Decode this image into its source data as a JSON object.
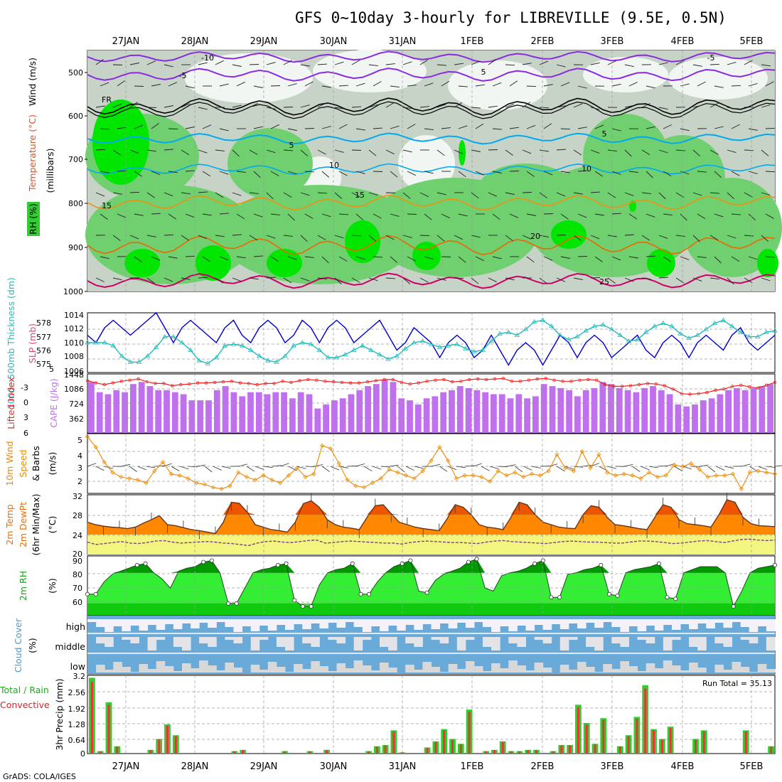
{
  "title": "GFS 0~10day 3-hourly for LIBREVILLE (9.5E, 0.5N)",
  "credit": "GrADS: COLA/IGES",
  "date_labels": [
    "27JAN",
    "28JAN",
    "29JAN",
    "30JAN",
    "31JAN",
    "1FEB",
    "2FEB",
    "3FEB",
    "4FEB",
    "5FEB"
  ],
  "colors": {
    "rh_light": "#c8d3c8",
    "rh_mid": "#70d070",
    "rh_strong": "#00e600",
    "temp_purple": "#8a2be2",
    "temp_black": "#000000",
    "temp_cyan": "#00aaee",
    "temp_orange": "#f09010",
    "temp_orange_dark": "#ee6600",
    "temp_magenta": "#cc0066",
    "slp": "#0000cc",
    "thickness": "#22bbbb",
    "cape": "#c070ee",
    "lifted": "#ee2222",
    "wind10m": "#ee8800",
    "temp2m": "#ff8800",
    "temp2m_max": "#ee5500",
    "dewpt": "#774488",
    "rh2m_dark": "#009900",
    "rh2m_mid": "#00cc00",
    "rh2m_light": "#33ee33",
    "cloud": "#6aaad8",
    "precip_total": "#33cc33",
    "precip_conv": "#ee3333"
  },
  "panels": {
    "upper": {
      "label_wind": "Wind (m/s)",
      "label_temp": "Temperature (°C)",
      "label_rh": "RH (%)",
      "label_axis": "(millibars)",
      "ticks": [
        "500",
        "600",
        "700",
        "800",
        "900",
        "1000"
      ],
      "contour_labels": [
        "-10",
        "-5",
        "5",
        "-5",
        "FR",
        "5",
        "5",
        "10",
        "10",
        "15",
        "15",
        "20",
        "25"
      ]
    },
    "slp": {
      "label_slp": "SLP (mb)",
      "label_thk": "1000~500mb Thickness (dm)",
      "ticks_left": [
        "578",
        "577",
        "576",
        "575"
      ],
      "ticks_right": [
        "1014",
        "1012",
        "1010",
        "1008"
      ],
      "overlap": [
        "5",
        "1006"
      ]
    },
    "cape": {
      "label_cape": "CAPE (J/kg)",
      "label_li": "Lifted Index",
      "ticks_left": [
        "-3",
        "0",
        "3",
        "6"
      ],
      "ticks_right": [
        "1448",
        "1086",
        "724",
        "362"
      ]
    },
    "wind10m": {
      "label1": "10m Wind",
      "label2": "Speed",
      "label3": "& Barbs",
      "label4": "(m/s)",
      "ticks": [
        "5",
        "4",
        "3",
        "2"
      ]
    },
    "temp2m": {
      "label1": "2m Temp",
      "label2": "2m DewPt",
      "label3": "(6hr Min/Max)",
      "label4": "(°C)",
      "ticks": [
        "32",
        "28",
        "24",
        "20"
      ]
    },
    "rh2m": {
      "label1": "2m RH",
      "label2": "(%)",
      "ticks": [
        "90",
        "80",
        "70",
        "60"
      ]
    },
    "cloud": {
      "label1": "Cloud Cover",
      "label2": "(%)",
      "ticks": [
        "high",
        "middle",
        "low"
      ]
    },
    "precip": {
      "label1": "Total / Rain",
      "label2": "Convective",
      "label3": "3hr Precip (mm)",
      "ticks": [
        "3.2",
        "2.56",
        "1.92",
        "1.28",
        "0.64",
        "0"
      ],
      "run_total": "Run Total = 35.13"
    }
  },
  "chart_data": [
    {
      "type": "line",
      "title": "SLP (mb)",
      "x": "3-hourly steps from 26 JAN 12Z to 5 FEB 12Z",
      "ylim": [
        1006,
        1014
      ],
      "series": [
        {
          "name": "SLP (mb)",
          "values": [
            1011,
            1010,
            1012,
            1013,
            1012,
            1011,
            1012,
            1013,
            1014,
            1012,
            1010,
            1012,
            1013,
            1012,
            1011,
            1010,
            1012,
            1013,
            1011,
            1010,
            1012,
            1013,
            1012,
            1010,
            1011,
            1013,
            1012,
            1010,
            1012,
            1013,
            1012,
            1010,
            1011,
            1012,
            1013,
            1011,
            1009,
            1010,
            1012,
            1011,
            1010,
            1008,
            1010,
            1011,
            1010,
            1008,
            1009,
            1011,
            1009,
            1007,
            1009,
            1010,
            1009,
            1007,
            1009,
            1011,
            1010,
            1008,
            1010,
            1011,
            1010,
            1008,
            1009,
            1010,
            1011,
            1009,
            1008,
            1010,
            1011,
            1010,
            1008,
            1010,
            1011,
            1010,
            1009,
            1011,
            1012,
            1010,
            1009,
            1010,
            1011
          ]
        }
      ]
    },
    {
      "type": "line",
      "title": "1000~500mb Thickness (dm)",
      "ylim": [
        574.5,
        578.5
      ],
      "series": [
        {
          "name": "1000~500mb Thickness (dm)",
          "values": [
            576.5,
            576.5,
            576.5,
            576.3,
            575.6,
            575.2,
            575.2,
            575.6,
            576.2,
            576.9,
            576.9,
            576.5,
            576.0,
            575.3,
            575.1,
            575.5,
            576.3,
            576.4,
            576.3,
            576.0,
            575.6,
            575.3,
            575.2,
            575.6,
            576.3,
            576.5,
            576.4,
            576.0,
            575.5,
            575.5,
            575.7,
            576.0,
            576.3,
            576.0,
            575.7,
            575.4,
            575.6,
            576.1,
            576.5,
            576.6,
            576.4,
            576.2,
            576.3,
            576.4,
            576.1,
            575.9,
            576.0,
            576.6,
            577.1,
            577.2,
            577.0,
            577.4,
            577.9,
            578.0,
            577.6,
            577.0,
            576.7,
            576.9,
            577.3,
            577.6,
            577.7,
            577.4,
            577.0,
            576.6,
            576.7,
            577.2,
            577.6,
            577.8,
            577.6,
            577.1,
            576.8,
            577.0,
            577.4,
            577.8,
            578.0,
            577.6,
            577.2,
            576.9,
            576.9,
            577.2,
            577.3
          ]
        }
      ]
    },
    {
      "type": "bar",
      "title": "CAPE (J/kg)",
      "ylim": [
        0,
        1448
      ],
      "series": [
        {
          "name": "CAPE (J/kg)",
          "values": [
            1250,
            1000,
            950,
            1050,
            1000,
            1200,
            1250,
            1150,
            1050,
            1050,
            1000,
            950,
            800,
            800,
            800,
            1050,
            1150,
            1000,
            900,
            1000,
            1000,
            950,
            1000,
            1000,
            850,
            1000,
            950,
            600,
            700,
            800,
            850,
            950,
            1050,
            1150,
            1200,
            1300,
            1250,
            850,
            800,
            700,
            850,
            900,
            1000,
            1050,
            1150,
            1100,
            1050,
            1000,
            950,
            950,
            850,
            950,
            850,
            900,
            1200,
            1150,
            1100,
            1050,
            900,
            1050,
            1100,
            1250,
            1200,
            1100,
            1050,
            1000,
            1100,
            1150,
            1050,
            950,
            700,
            650,
            700,
            800,
            850,
            950,
            1050,
            1100,
            1050,
            1100,
            1150,
            1200
          ]
        }
      ]
    },
    {
      "type": "line",
      "title": "Lifted Index",
      "ylim": [
        6,
        -4.5
      ],
      "series": [
        {
          "name": "Lifted Index",
          "values": [
            -3.3,
            -2.9,
            -2.6,
            -2.9,
            -3.2,
            -3.4,
            -3.6,
            -3.1,
            -2.8,
            -2.8,
            -2.4,
            -2.6,
            -2.7,
            -2.9,
            -2.9,
            -3.0,
            -3.1,
            -3.2,
            -2.9,
            -2.8,
            -2.6,
            -2.8,
            -2.8,
            -3.2,
            -3.0,
            -3.3,
            -3.5,
            -3.4,
            -3.2,
            -3.1,
            -3.0,
            -2.9,
            -2.9,
            -3.1,
            -3.3,
            -3.5,
            -3.5,
            -3.0,
            -2.7,
            -2.9,
            -3.2,
            -3.4,
            -3.5,
            -3.1,
            -3.2,
            -3.5,
            -3.6,
            -3.5,
            -3.6,
            -3.7,
            -3.2,
            -3.2,
            -3.4,
            -3.6,
            -3.7,
            -3.4,
            -3.2,
            -3.2,
            -3.4,
            -3.5,
            -3.4,
            -2.6,
            -2.3,
            -2.3,
            -2.4,
            -2.6,
            -2.8,
            -2.7,
            -2.4,
            -1.8,
            -1.0,
            -0.9,
            -1.0,
            -1.2,
            -1.6,
            -1.8,
            -2.3,
            -2.5,
            -2.2,
            -2.0,
            -2.5,
            -3.0
          ]
        }
      ]
    },
    {
      "type": "line",
      "title": "10m Wind Speed (m/s)",
      "ylim": [
        1.3,
        5.3
      ],
      "series": [
        {
          "name": "10m Wind Speed (m/s)",
          "values": [
            5.1,
            4.4,
            3.4,
            2.7,
            2.4,
            2.3,
            2.2,
            2.0,
            2.8,
            3.4,
            2.6,
            2.5,
            2.3,
            2.0,
            1.9,
            1.7,
            1.6,
            1.8,
            2.7,
            2.4,
            2.2,
            2.5,
            2.2,
            2.0,
            2.5,
            3.0,
            2.4,
            2.6,
            4.5,
            4.3,
            3.3,
            2.2,
            1.8,
            1.7,
            2.0,
            2.3,
            2.9,
            2.7,
            2.5,
            2.3,
            2.8,
            3.5,
            4.4,
            3.5,
            2.3,
            2.5,
            2.5,
            2.4,
            2.1,
            2.8,
            2.5,
            2.7,
            2.4,
            2.6,
            2.5,
            2.8,
            3.9,
            3.0,
            2.8,
            4.1,
            3.0,
            3.9,
            2.7,
            2.5,
            2.6,
            2.5,
            2.3,
            2.7,
            2.4,
            2.5,
            3.2,
            3.1,
            3.3,
            2.9,
            2.4,
            2.5,
            2.5,
            2.6,
            1.6,
            2.7,
            2.8,
            2.7,
            2.6
          ]
        }
      ]
    },
    {
      "type": "area",
      "title": "2m Temp (°C)",
      "ylim": [
        20,
        32
      ],
      "series": [
        {
          "name": "2m Temp",
          "values": [
            26.5,
            26.0,
            25.7,
            25.5,
            25.4,
            25.2,
            25.5,
            26.3,
            27.0,
            27.8,
            26.0,
            25.8,
            25.4,
            25.0,
            24.8,
            24.5,
            24.2,
            26.5,
            30.5,
            30.3,
            28.5,
            26.0,
            25.5,
            25.0,
            24.8,
            24.5,
            26.5,
            30.2,
            30.8,
            29.5,
            27.0,
            26.0,
            25.5,
            25.3,
            25.0,
            27.5,
            29.8,
            30.0,
            28.2,
            26.5,
            26.0,
            25.5,
            25.2,
            25.0,
            24.8,
            27.2,
            30.0,
            29.5,
            28.0,
            26.0,
            25.5,
            25.3,
            25.0,
            27.5,
            30.5,
            30.0,
            28.0,
            26.5,
            26.0,
            25.5,
            25.3,
            25.2,
            28.0,
            29.8,
            29.5,
            27.5,
            26.0,
            25.8,
            25.5,
            25.2,
            25.0,
            27.5,
            30.0,
            29.5,
            27.0,
            26.2,
            26.0,
            25.8,
            25.5,
            28.0,
            31.0,
            30.5,
            27.5,
            26.2,
            25.8,
            25.7,
            25.6
          ]
        },
        {
          "name": "2m DewPt",
          "values": [
            22.5,
            22.0,
            22.2,
            22.4,
            22.6,
            22.3,
            22.2,
            22.4,
            22.7,
            22.8,
            22.5,
            22.3,
            22.4,
            22.5,
            22.6,
            22.5,
            22.3,
            22.2,
            22.0,
            21.8,
            22.3,
            22.6,
            22.7,
            22.5,
            22.4,
            22.6,
            22.8,
            22.9,
            22.3,
            22.4,
            22.6,
            22.7,
            22.6,
            22.5,
            22.4,
            22.3,
            22.3,
            22.1,
            22.4,
            22.6,
            22.7,
            22.6,
            22.5,
            22.4,
            22.4,
            22.3,
            22.2,
            22.5,
            22.7,
            22.8,
            22.6,
            22.5,
            22.4,
            22.3,
            22.2,
            22.4,
            22.6,
            22.7,
            22.6,
            22.5,
            22.5,
            22.4,
            22.3,
            22.3,
            22.5,
            22.7,
            22.7,
            22.6,
            22.4,
            22.2,
            22.3,
            22.5,
            22.7,
            22.8,
            22.6,
            22.4,
            22.7,
            23.0,
            23.1,
            22.9,
            22.8,
            22.9
          ]
        }
      ]
    },
    {
      "type": "area",
      "title": "2m RH (%)",
      "ylim": [
        52,
        91
      ],
      "series": [
        {
          "name": "2m RH (%)",
          "values": [
            66,
            66,
            74,
            79,
            81,
            83,
            85,
            86,
            80,
            76,
            70,
            81,
            83,
            84,
            87,
            88,
            80,
            60,
            60,
            70,
            80,
            82,
            83,
            85,
            86,
            62,
            58,
            58,
            72,
            80,
            82,
            83,
            86,
            66,
            66,
            74,
            80,
            84,
            86,
            88,
            68,
            67,
            75,
            79,
            81,
            83,
            87,
            89,
            70,
            68,
            78,
            80,
            81,
            83,
            86,
            88,
            64,
            64,
            79,
            80,
            82,
            83,
            85,
            66,
            65,
            80,
            82,
            83,
            84,
            86,
            64,
            63,
            80,
            82,
            84,
            84,
            84,
            80,
            58,
            68,
            80,
            83,
            84,
            85
          ]
        }
      ]
    },
    {
      "type": "bar",
      "title": "3hr Precip (mm)",
      "ylim": [
        0,
        3.2
      ],
      "series": [
        {
          "name": "3hr Precip (mm)",
          "values": [
            3.1,
            0.1,
            2.1,
            0.3,
            0,
            0,
            0,
            0.15,
            0.6,
            1.2,
            0.75,
            0,
            0,
            0,
            0,
            0,
            0,
            0.1,
            0.15,
            0,
            0,
            0,
            0,
            0.1,
            0,
            0,
            0.1,
            0,
            0.15,
            0,
            0,
            0,
            0,
            0.1,
            0.3,
            0.35,
            0.95,
            0.05,
            0,
            0,
            0.25,
            0.5,
            1.0,
            0.6,
            0.4,
            1.8,
            0,
            0.1,
            0.15,
            0.5,
            0.1,
            0.1,
            0.15,
            0.15,
            0,
            0.1,
            0.35,
            0.35,
            2.0,
            1.25,
            0.4,
            1.45,
            0,
            0.3,
            0.75,
            1.5,
            2.8,
            1.0,
            0.6,
            1.1,
            0,
            0,
            0.6,
            0.95,
            0,
            0,
            0,
            0,
            0.95,
            0,
            0,
            0.3
          ]
        }
      ]
    }
  ]
}
